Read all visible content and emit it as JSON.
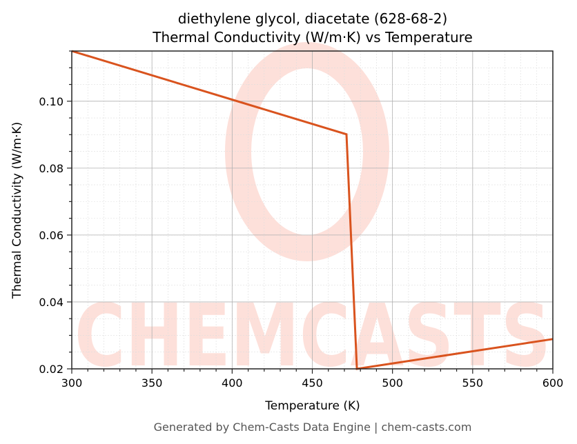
{
  "title_line1": "diethylene glycol, diacetate (628-68-2)",
  "title_line2": "Thermal Conductivity (W/m·K) vs Temperature",
  "footer": "Generated by Chem-Casts Data Engine | chem-casts.com",
  "watermark": "CHEMCASTS",
  "colors": {
    "line": "#d9531e",
    "watermark": "#fde0da",
    "grid_major": "#b0b0b0",
    "grid_minor": "#dddddd"
  },
  "chart_data": {
    "type": "line",
    "title": "diethylene glycol, diacetate (628-68-2)\nThermal Conductivity (W/m·K) vs Temperature",
    "xlabel": "Temperature (K)",
    "ylabel": "Thermal Conductivity (W/m·K)",
    "xlim": [
      300,
      600
    ],
    "ylim": [
      0.02,
      0.115
    ],
    "xticks": [
      300,
      350,
      400,
      450,
      500,
      550,
      600
    ],
    "xtick_labels": [
      "300",
      "350",
      "400",
      "450",
      "500",
      "550",
      "600"
    ],
    "yticks": [
      0.02,
      0.04,
      0.06,
      0.08,
      0.1
    ],
    "ytick_labels": [
      "0.02",
      "0.04",
      "0.06",
      "0.08",
      "0.10"
    ],
    "grid": true,
    "legend": null,
    "series": [
      {
        "name": "Thermal Conductivity",
        "x": [
          300,
          471.3,
          477.8,
          600
        ],
        "y": [
          0.115,
          0.0901,
          0.02,
          0.0289
        ]
      }
    ]
  }
}
